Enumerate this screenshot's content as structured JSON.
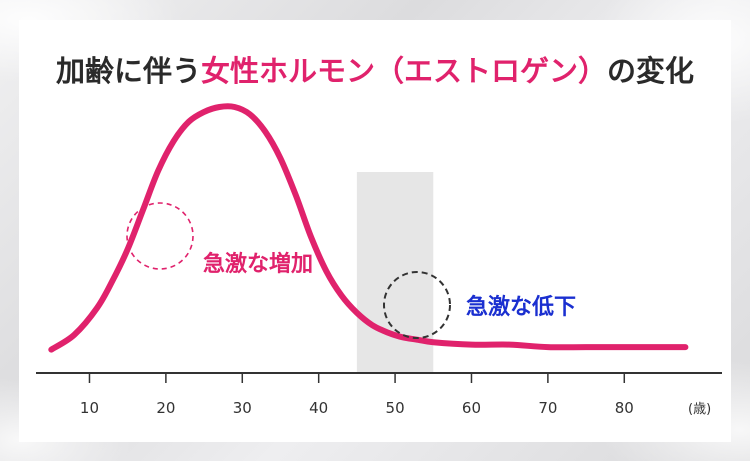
{
  "title": {
    "part1": "加齢に伴う",
    "part2": "女性ホルモン（エストロゲン）",
    "part3": "の変化"
  },
  "annotations": {
    "increase": "急激な増加",
    "decrease": "急激な低下"
  },
  "colors": {
    "curve": "#e0226c",
    "increase_text": "#e0226c",
    "decrease_text": "#1a2fd0",
    "axis": "#333333",
    "shade": "#e6e6e6"
  },
  "chart_data": {
    "type": "line",
    "title": "加齢に伴う女性ホルモン（エストロゲン）の変化",
    "xlabel": "(歳)",
    "ylabel": "",
    "x_ticks": [
      10,
      20,
      30,
      40,
      50,
      60,
      70,
      80
    ],
    "xlim": [
      3,
      89
    ],
    "ylim": [
      0,
      1
    ],
    "grid": false,
    "shaded_range": [
      45,
      55
    ],
    "highlight_circles": [
      {
        "x": 16.5,
        "label": "急激な増加"
      },
      {
        "x": 48,
        "label": "急激な低下"
      }
    ],
    "series": [
      {
        "x": [
          5,
          8,
          11,
          13,
          15,
          17,
          19,
          21,
          23,
          25,
          27,
          29,
          31,
          33,
          35,
          37,
          39,
          41,
          43,
          45,
          47,
          49,
          51,
          53,
          55,
          60,
          65,
          70,
          75,
          80,
          85,
          88
        ],
        "values": [
          0.01,
          0.07,
          0.18,
          0.29,
          0.42,
          0.58,
          0.74,
          0.86,
          0.94,
          0.98,
          1.0,
          1.0,
          0.97,
          0.9,
          0.79,
          0.64,
          0.47,
          0.33,
          0.23,
          0.16,
          0.11,
          0.08,
          0.06,
          0.05,
          0.04,
          0.03,
          0.03,
          0.02,
          0.02,
          0.02,
          0.02,
          0.02
        ]
      }
    ]
  }
}
